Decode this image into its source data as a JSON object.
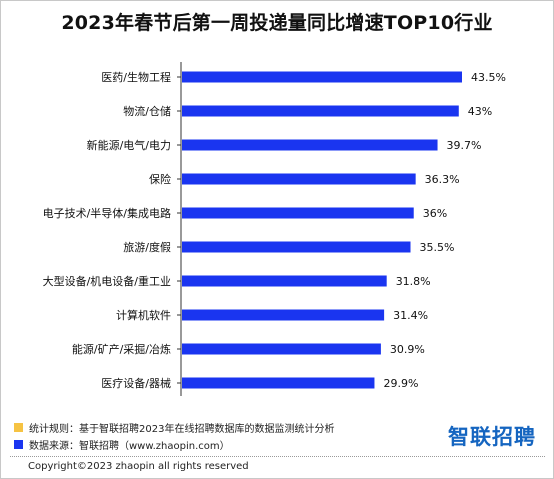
{
  "colors": {
    "bar": "#1a35f0",
    "rule_swatch": "#f6c343",
    "source_swatch": "#1a35f0",
    "brand": "#1565c0"
  },
  "chart_data": {
    "type": "bar",
    "orientation": "horizontal",
    "title": "2023年春节后第一周投递量同比增速TOP10行业",
    "categories": [
      "医药/生物工程",
      "物流/仓储",
      "新能源/电气/电力",
      "保险",
      "电子技术/半导体/集成电路",
      "旅游/度假",
      "大型设备/机电设备/重工业",
      "计算机软件",
      "能源/矿产/采掘/冶炼",
      "医疗设备/器械"
    ],
    "values": [
      43.5,
      43,
      39.7,
      36.3,
      36,
      35.5,
      31.8,
      31.4,
      30.9,
      29.9
    ],
    "value_labels": [
      "43.5%",
      "43%",
      "39.7%",
      "36.3%",
      "36%",
      "35.5%",
      "31.8%",
      "31.4%",
      "30.9%",
      "29.9%"
    ],
    "xlabel": "",
    "ylabel": "",
    "xlim": [
      0,
      43.5
    ],
    "grid": false,
    "legend": "none"
  },
  "notes": {
    "rule": "统计规则：基于智联招聘2023年在线招聘数据库的数据监测统计分析",
    "source": "数据来源：智联招聘（www.zhaopin.com）"
  },
  "brand": {
    "logo_text": "智联招聘"
  },
  "footer": {
    "copyright": "Copyright©2023 zhaopin all rights reserved"
  }
}
